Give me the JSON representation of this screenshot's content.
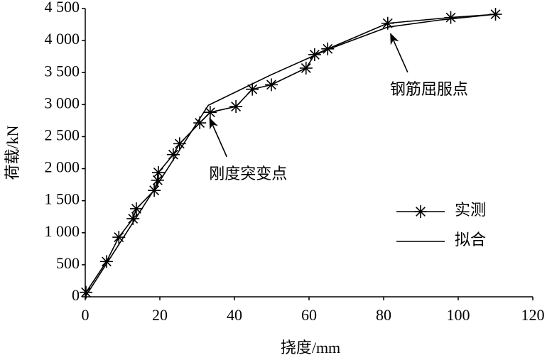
{
  "chart_data": {
    "type": "line",
    "x_label": "挠度/mm",
    "y_label": "荷载/kN",
    "xlim": [
      0,
      120
    ],
    "xticks": [
      0,
      20,
      40,
      60,
      80,
      100,
      120
    ],
    "ylim": [
      0,
      4500
    ],
    "yticks": [
      0,
      500,
      {
        "value": 1000,
        "label": "1 000"
      },
      {
        "value": 1500,
        "label": "1 500"
      },
      {
        "value": 2000,
        "label": "2 000"
      },
      {
        "value": 2500,
        "label": "2 500"
      },
      {
        "value": 3000,
        "label": "3 000"
      },
      {
        "value": 3500,
        "label": "3 500"
      },
      {
        "value": 4000,
        "label": "4 000"
      },
      {
        "value": 4500,
        "label": "4 500"
      }
    ],
    "series": [
      {
        "name": "实测",
        "color": "#000000",
        "marker": "star",
        "x": [
          0.2,
          5.7,
          9,
          12.8,
          13.7,
          18.5,
          19.4,
          19.6,
          23.6,
          25.3,
          30.7,
          33.5,
          40.4,
          44.8,
          49.9,
          59.2,
          61.5,
          65,
          81.1,
          98,
          110
        ],
        "values": [
          70,
          550,
          930,
          1220,
          1375,
          1660,
          1820,
          1940,
          2220,
          2390,
          2715,
          2880,
          2970,
          3240,
          3310,
          3570,
          3780,
          3870,
          4270,
          4360,
          4410
        ]
      },
      {
        "name": "拟合",
        "color": "#000000",
        "x": [
          0,
          33,
          50,
          65,
          81.1,
          95,
          110
        ],
        "values": [
          0,
          2990,
          3470,
          3860,
          4210,
          4320,
          4410
        ]
      }
    ],
    "annotations": [
      {
        "text": "刚度突变点",
        "x": 33,
        "y": 2850
      },
      {
        "text": "钢筋屈服点",
        "x": 81.5,
        "y": 4170
      }
    ]
  }
}
